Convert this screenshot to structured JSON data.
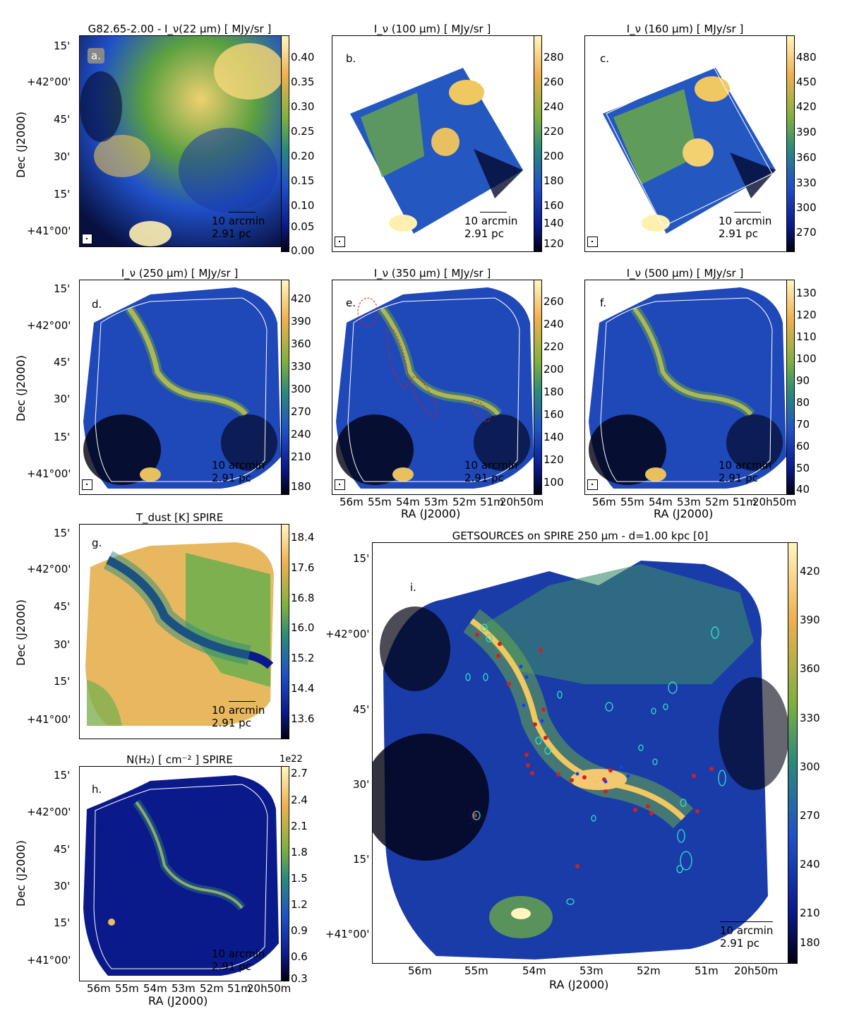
{
  "panels": {
    "a": {
      "title": "G82.65-2.00 - I_ν(22 μm)  [ MJy/sr ]",
      "label": "a.",
      "ticks": [
        "0.40",
        "0.35",
        "0.30",
        "0.25",
        "0.20",
        "0.15",
        "0.10",
        "0.05",
        "0.00"
      ]
    },
    "b": {
      "title": "I_ν (100 μm) [ MJy/sr ]",
      "label": "b.",
      "ticks": [
        "280",
        "260",
        "240",
        "220",
        "200",
        "180",
        "160",
        "140",
        "120"
      ]
    },
    "c": {
      "title": "I_ν (160 μm) [ MJy/sr ]",
      "label": "c.",
      "ticks": [
        "480",
        "450",
        "420",
        "390",
        "360",
        "330",
        "300",
        "270"
      ]
    },
    "d": {
      "title": "I_ν (250 μm) [ MJy/sr ]",
      "label": "d.",
      "ticks": [
        "420",
        "390",
        "360",
        "330",
        "300",
        "270",
        "240",
        "210",
        "180"
      ]
    },
    "e": {
      "title": "I_ν (350 μm) [ MJy/sr ]",
      "label": "e.",
      "ticks": [
        "260",
        "240",
        "220",
        "200",
        "180",
        "160",
        "140",
        "120",
        "100"
      ]
    },
    "f": {
      "title": "I_ν (500 μm) [ MJy/sr ]",
      "label": "f.",
      "ticks": [
        "130",
        "120",
        "110",
        "100",
        "90",
        "80",
        "70",
        "60",
        "50",
        "40"
      ]
    },
    "g": {
      "title": "T_dust [K] SPIRE",
      "label": "g.",
      "ticks": [
        "18.4",
        "17.6",
        "16.8",
        "16.0",
        "15.2",
        "14.4",
        "13.6"
      ]
    },
    "h": {
      "title": "N(H₂) [ cm⁻² ] SPIRE",
      "label": "h.",
      "exponent": "1e22",
      "ticks": [
        "2.7",
        "2.4",
        "2.1",
        "1.8",
        "1.5",
        "1.2",
        "0.9",
        "0.6",
        "0.3"
      ]
    },
    "i": {
      "title": "GETSOURCES on SPIRE 250 μm  -  d=1.00 kpc [0]",
      "label": "i.",
      "ticks": [
        "420",
        "390",
        "360",
        "330",
        "300",
        "270",
        "240",
        "210",
        "180"
      ]
    }
  },
  "axes": {
    "dec_ticks": [
      "15'",
      "+42°00'",
      "45'",
      "30'",
      "15'",
      "+41°00'"
    ],
    "ra_ticks": [
      "56m",
      "55m",
      "54m",
      "53m",
      "52m",
      "51m",
      "20h50m"
    ],
    "ylabel": "Dec (J2000)",
    "xlabel": "RA (J2000)"
  },
  "scale": {
    "line1": "10 arcmin",
    "line2": "2.91 pc"
  },
  "colors": {
    "cmap_low": "#000010",
    "cmap_mid": "#2d8a7a",
    "cmap_high": "#fff6c0",
    "source_marker": "#d02020",
    "ellipse": "#30e0d0"
  }
}
